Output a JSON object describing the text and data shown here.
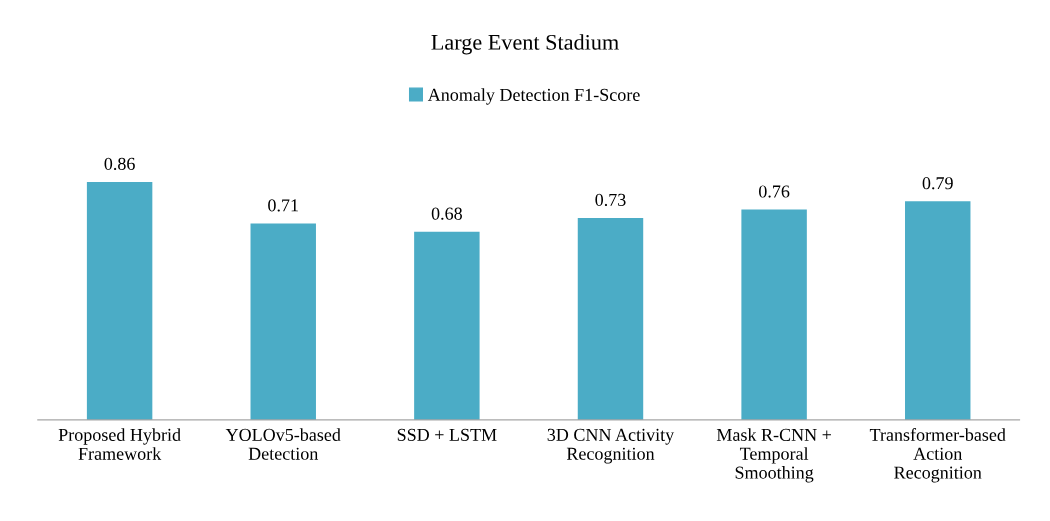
{
  "chart_data": {
    "type": "bar",
    "title": "Large Event Stadium",
    "categories": [
      "Proposed Hybrid\nFramework",
      "YOLOv5-based\nDetection",
      "SSD + LSTM",
      "3D CNN Activity\nRecognition",
      "Mask R-CNN +\nTemporal\nSmoothing",
      "Transformer-based\nAction\nRecognition"
    ],
    "series": [
      {
        "name": "Anomaly Detection F1-Score",
        "color": "#4bacc6",
        "values": [
          0.86,
          0.71,
          0.68,
          0.73,
          0.76,
          0.79
        ]
      }
    ],
    "data_labels": true,
    "legend": "top",
    "grid": false
  }
}
